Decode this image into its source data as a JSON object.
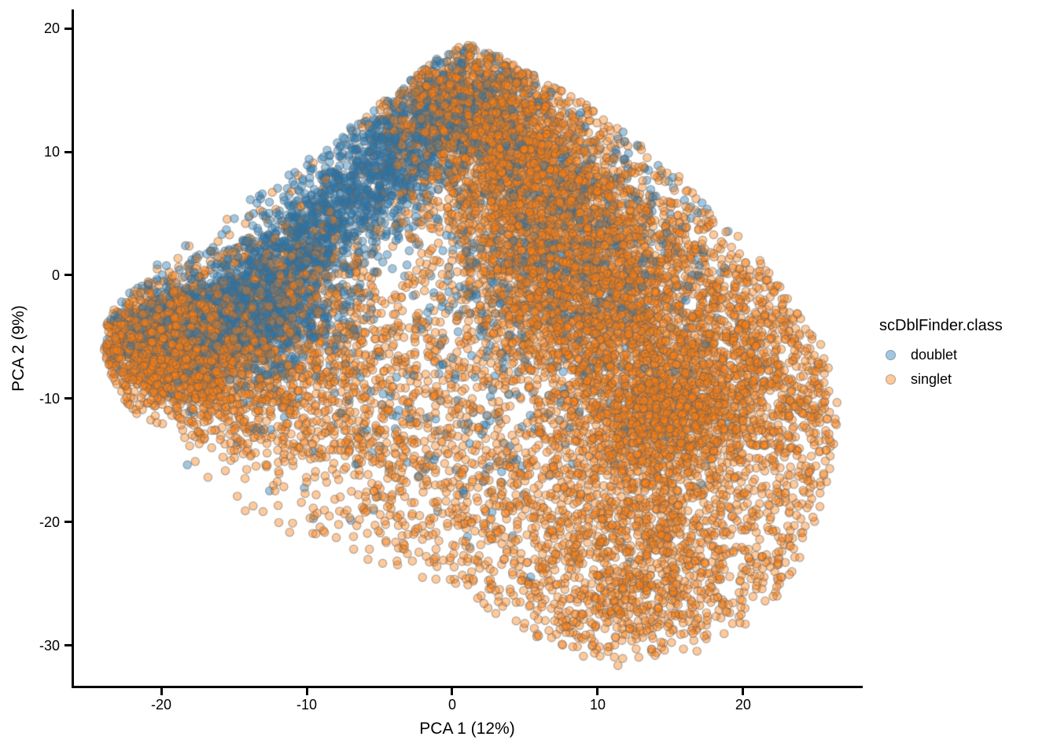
{
  "chart_data": {
    "type": "scatter",
    "title": "",
    "xlabel": "PCA 1 (12%)",
    "ylabel": "PCA 2 (9%)",
    "xlim": [
      -26.11,
      28.22
    ],
    "ylim": [
      -33.38,
      21.53
    ],
    "x_ticks": [
      -20,
      -10,
      0,
      10,
      20
    ],
    "y_ticks": [
      -30,
      -20,
      -10,
      0,
      10,
      20
    ],
    "grid": "off",
    "theme": "classic",
    "legend": {
      "title": "scDblFinder.class",
      "position": "right",
      "entries": [
        {
          "label": "doublet",
          "class": "doublet",
          "color": "#1f77b4"
        },
        {
          "label": "singlet",
          "class": "singlet",
          "color": "#ff7f0e"
        }
      ]
    },
    "point_style": {
      "radius": 5.2,
      "fill_alpha": 0.42,
      "stroke": "rgba(100,100,100,0.5)",
      "stroke_width": 1.2
    },
    "seed": 1337,
    "hull": [
      [
        0.5,
        19.0
      ],
      [
        3.5,
        17.6
      ],
      [
        9,
        14.0
      ],
      [
        14,
        9.8
      ],
      [
        19,
        4.2
      ],
      [
        22.5,
        -0.5
      ],
      [
        25.6,
        -6
      ],
      [
        26.6,
        -11
      ],
      [
        25.8,
        -17
      ],
      [
        24,
        -23
      ],
      [
        21.5,
        -27.5
      ],
      [
        17,
        -30.5
      ],
      [
        11,
        -32
      ],
      [
        7,
        -30.2
      ],
      [
        1,
        -26.2
      ],
      [
        -5,
        -23.4
      ],
      [
        -11,
        -21.2
      ],
      [
        -16,
        -18.2
      ],
      [
        -20,
        -14.2
      ],
      [
        -22.8,
        -10
      ],
      [
        -24.1,
        -6.5
      ],
      [
        -23.7,
        -3.4
      ],
      [
        -21,
        0.2
      ],
      [
        -17,
        4.0
      ],
      [
        -12,
        8.0
      ],
      [
        -7,
        12.0
      ],
      [
        -2.5,
        16.2
      ]
    ],
    "clusters": [
      {
        "class": "singlet",
        "type": "gauss",
        "cx": -19.2,
        "cy": -5.6,
        "sx": 3.1,
        "sy": 2.2,
        "rot": 15,
        "n": 1900
      },
      {
        "class": "singlet",
        "type": "gauss",
        "cx": -15.0,
        "cy": -10.0,
        "sx": 3.4,
        "sy": 2.2,
        "rot": -20,
        "n": 420
      },
      {
        "class": "singlet",
        "type": "gauss",
        "cx": -12.0,
        "cy": -1.5,
        "sx": 3.8,
        "sy": 3.2,
        "rot": 45,
        "n": 520
      },
      {
        "class": "singlet",
        "type": "gauss",
        "cx": 1.2,
        "cy": 13.6,
        "sx": 3.0,
        "sy": 2.6,
        "rot": 0,
        "n": 1250
      },
      {
        "class": "singlet",
        "type": "gauss",
        "cx": 5.5,
        "cy": 7.5,
        "sx": 4.0,
        "sy": 3.6,
        "rot": -45,
        "n": 1600
      },
      {
        "class": "singlet",
        "type": "gauss",
        "cx": 9.5,
        "cy": -1.5,
        "sx": 4.8,
        "sy": 4.8,
        "rot": 0,
        "n": 2500
      },
      {
        "class": "singlet",
        "type": "gauss",
        "cx": 14.5,
        "cy": -11.0,
        "sx": 3.7,
        "sy": 3.3,
        "rot": 0,
        "n": 1500
      },
      {
        "class": "singlet",
        "type": "gauss",
        "cx": 20.5,
        "cy": -6.0,
        "sx": 3.2,
        "sy": 4.4,
        "rot": 15,
        "n": 620
      },
      {
        "class": "singlet",
        "type": "gauss",
        "cx": -6.5,
        "cy": -7.5,
        "sx": 4.8,
        "sy": 4.2,
        "rot": -30,
        "n": 620
      },
      {
        "class": "singlet",
        "type": "gauss",
        "cx": 1.5,
        "cy": -17.5,
        "sx": 8.5,
        "sy": 4.2,
        "rot": -10,
        "n": 800
      },
      {
        "class": "singlet",
        "type": "gauss",
        "cx": 14.0,
        "cy": -21.5,
        "sx": 5.0,
        "sy": 4.0,
        "rot": 0,
        "n": 850
      },
      {
        "class": "singlet",
        "type": "gauss",
        "cx": 10.5,
        "cy": -27.0,
        "sx": 6.5,
        "sy": 2.6,
        "rot": 0,
        "n": 340
      },
      {
        "class": "singlet",
        "type": "gauss",
        "cx": 24.0,
        "cy": -15.0,
        "sx": 2.3,
        "sy": 5.0,
        "rot": 0,
        "n": 210
      },
      {
        "class": "doublet",
        "type": "band",
        "x1": -15.5,
        "y1": -3.5,
        "x2": -1.5,
        "y2": 12.5,
        "sigma": 2.1,
        "n": 1750
      },
      {
        "class": "doublet",
        "type": "gauss",
        "cx": -13.0,
        "cy": -4.2,
        "sx": 3.1,
        "sy": 2.4,
        "rot": 35,
        "n": 560
      },
      {
        "class": "doublet",
        "type": "gauss",
        "cx": -18.8,
        "cy": -4.0,
        "sx": 2.6,
        "sy": 2.0,
        "rot": 15,
        "n": 430
      },
      {
        "class": "doublet",
        "type": "gauss",
        "cx": 0.2,
        "cy": 13.8,
        "sx": 2.7,
        "sy": 2.4,
        "rot": 0,
        "n": 340
      },
      {
        "class": "doublet",
        "type": "gauss",
        "cx": 7.0,
        "cy": 3.0,
        "sx": 5.5,
        "sy": 5.5,
        "rot": 0,
        "n": 640
      },
      {
        "class": "doublet",
        "type": "gauss",
        "cx": -1.0,
        "cy": -12.0,
        "sx": 8.0,
        "sy": 5.0,
        "rot": 0,
        "n": 150
      }
    ]
  }
}
